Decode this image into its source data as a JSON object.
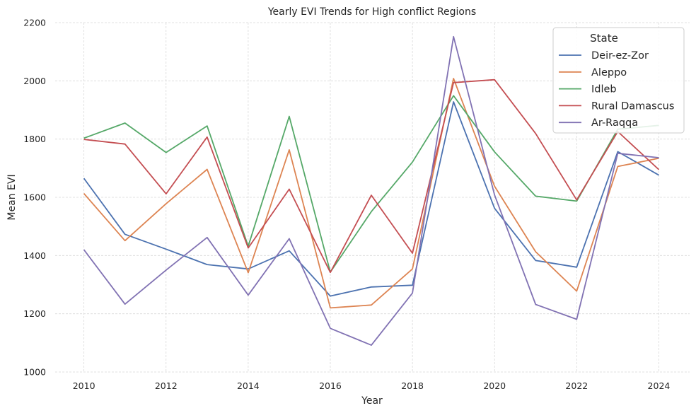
{
  "chart_data": {
    "type": "line",
    "title": "Yearly EVI Trends for High conflict Regions",
    "xlabel": "Year",
    "ylabel": "Mean EVI",
    "x": [
      2010,
      2011,
      2012,
      2013,
      2014,
      2015,
      2016,
      2017,
      2018,
      2019,
      2020,
      2021,
      2022,
      2023,
      2024
    ],
    "xticks": [
      2010,
      2012,
      2014,
      2016,
      2018,
      2020,
      2022,
      2024
    ],
    "yticks": [
      1000,
      1200,
      1400,
      1600,
      1800,
      2000,
      2200
    ],
    "xlim": [
      2009.3,
      2024.75
    ],
    "ylim": [
      1000,
      2200
    ],
    "grid": true,
    "legend": {
      "title": "State",
      "placement": "top-right"
    },
    "series": [
      {
        "name": "Deir-ez-Zor",
        "color": "#4c72b0",
        "values": [
          1665,
          1473,
          1422,
          1369,
          1354,
          1416,
          1261,
          1292,
          1298,
          1928,
          1562,
          1383,
          1360,
          1757,
          1676
        ]
      },
      {
        "name": "Aleppo",
        "color": "#dd8452",
        "values": [
          1613,
          1451,
          1578,
          1696,
          1341,
          1763,
          1220,
          1230,
          1354,
          2008,
          1638,
          1413,
          1278,
          1706,
          1734
        ]
      },
      {
        "name": "Idleb",
        "color": "#55a868",
        "values": [
          1803,
          1855,
          1754,
          1845,
          1432,
          1878,
          1343,
          1551,
          1721,
          1949,
          1756,
          1604,
          1587,
          1834,
          1847
        ]
      },
      {
        "name": "Rural Damascus",
        "color": "#c44e52",
        "values": [
          1799,
          1783,
          1612,
          1807,
          1426,
          1628,
          1342,
          1607,
          1408,
          1994,
          2004,
          1819,
          1591,
          1826,
          1695
        ]
      },
      {
        "name": "Ar-Raqqa",
        "color": "#8172b3",
        "values": [
          1420,
          1233,
          1350,
          1462,
          1264,
          1458,
          1150,
          1092,
          1271,
          2152,
          1608,
          1232,
          1181,
          1751,
          1736
        ]
      }
    ]
  }
}
